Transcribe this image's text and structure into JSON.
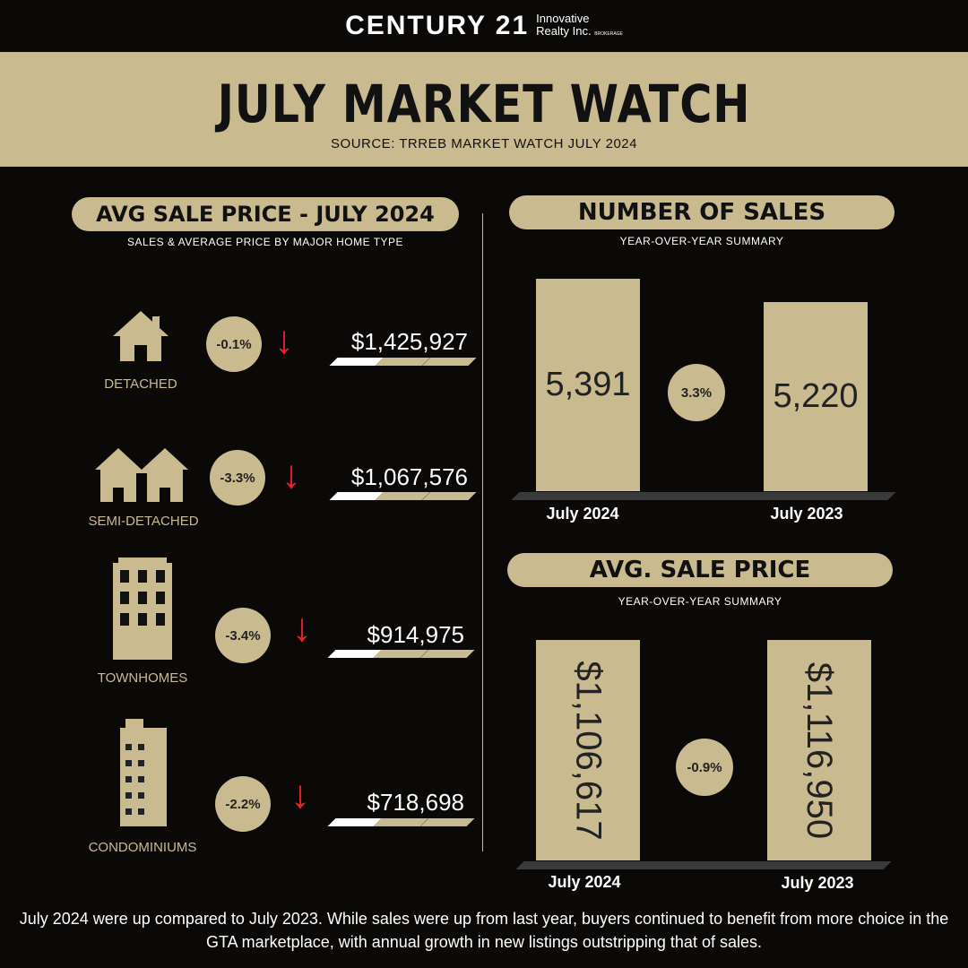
{
  "logo": {
    "brand": "CENTURY 21",
    "line1": "Innovative",
    "line2": "Realty Inc.",
    "tag": "BROKERAGE"
  },
  "header": {
    "title": "JULY MARKET WATCH",
    "source": "SOURCE: TRREB MARKET WATCH JULY 2024"
  },
  "left": {
    "title": "AVG SALE PRICE - JULY 2024",
    "subtitle": "SALES & AVERAGE PRICE BY MAJOR HOME TYPE",
    "items": [
      {
        "label": "DETACHED",
        "change": "-0.1%",
        "price": "$1,425,927",
        "icon": "house-icon"
      },
      {
        "label": "SEMI-DETACHED",
        "change": "-3.3%",
        "price": "$1,067,576",
        "icon": "semi-detached-icon"
      },
      {
        "label": "TOWNHOMES",
        "change": "-3.4%",
        "price": "$914,975",
        "icon": "townhome-icon"
      },
      {
        "label": "CONDOMINIUMS",
        "change": "-2.2%",
        "price": "$718,698",
        "icon": "condo-icon"
      }
    ]
  },
  "sales": {
    "title": "NUMBER OF SALES",
    "subtitle": "YEAR-OVER-YEAR SUMMARY",
    "a_value": "5,391",
    "a_label": "July 2024",
    "change": "3.3%",
    "b_value": "5,220",
    "b_label": "July 2023"
  },
  "avg": {
    "title": "AVG. SALE PRICE",
    "subtitle": "YEAR-OVER-YEAR SUMMARY",
    "a_value": "$1,106,617",
    "a_label": "July 2024",
    "change": "-0.9%",
    "b_value": "$1,116,950",
    "b_label": "July 2023"
  },
  "footer": "July 2024 were up compared to July 2023. While sales were up from last year, buyers continued to benefit from more choice in the GTA marketplace, with annual growth in new listings outstripping that of sales.",
  "colors": {
    "accent": "#c9ba8f",
    "background": "#0b0907",
    "down_arrow": "#e8232a"
  }
}
